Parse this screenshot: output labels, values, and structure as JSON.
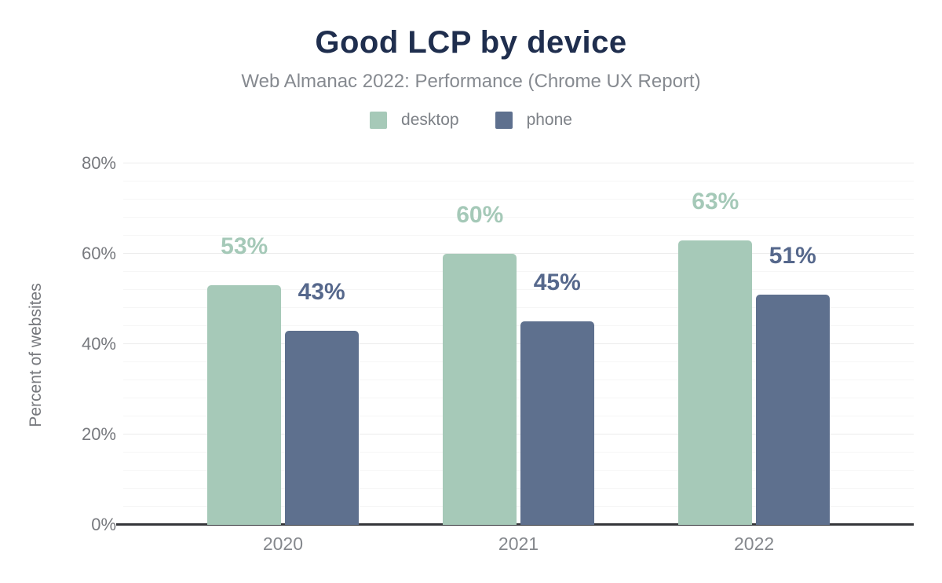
{
  "chart_data": {
    "type": "bar",
    "title": "Good LCP by device",
    "subtitle": "Web Almanac 2022: Performance (Chrome UX Report)",
    "categories": [
      "2020",
      "2021",
      "2022"
    ],
    "series": [
      {
        "name": "desktop",
        "values": [
          53,
          60,
          63
        ],
        "color": "#a6c9b8",
        "label_color": "#a5c9b8"
      },
      {
        "name": "phone",
        "values": [
          43,
          45,
          51
        ],
        "color": "#5e708e",
        "label_color": "#56688c"
      }
    ],
    "data_label_format": "{value}%",
    "xlabel": "",
    "ylabel": "Percent of websites",
    "ylim": [
      0,
      80
    ],
    "y_ticks": [
      "0%",
      "20%",
      "40%",
      "60%",
      "80%"
    ],
    "y_tick_values": [
      0,
      20,
      40,
      60,
      80
    ],
    "major_grid_step": 20,
    "minor_grid_step": 4,
    "grid": true,
    "legend_position": "top",
    "colors": {
      "title": "#1f2e4e",
      "subtitle": "#868a90",
      "axis_text": "#77797e",
      "baseline": "#35363a",
      "minor_grid": "#f6f6f6",
      "major_grid": "#ececec"
    }
  }
}
